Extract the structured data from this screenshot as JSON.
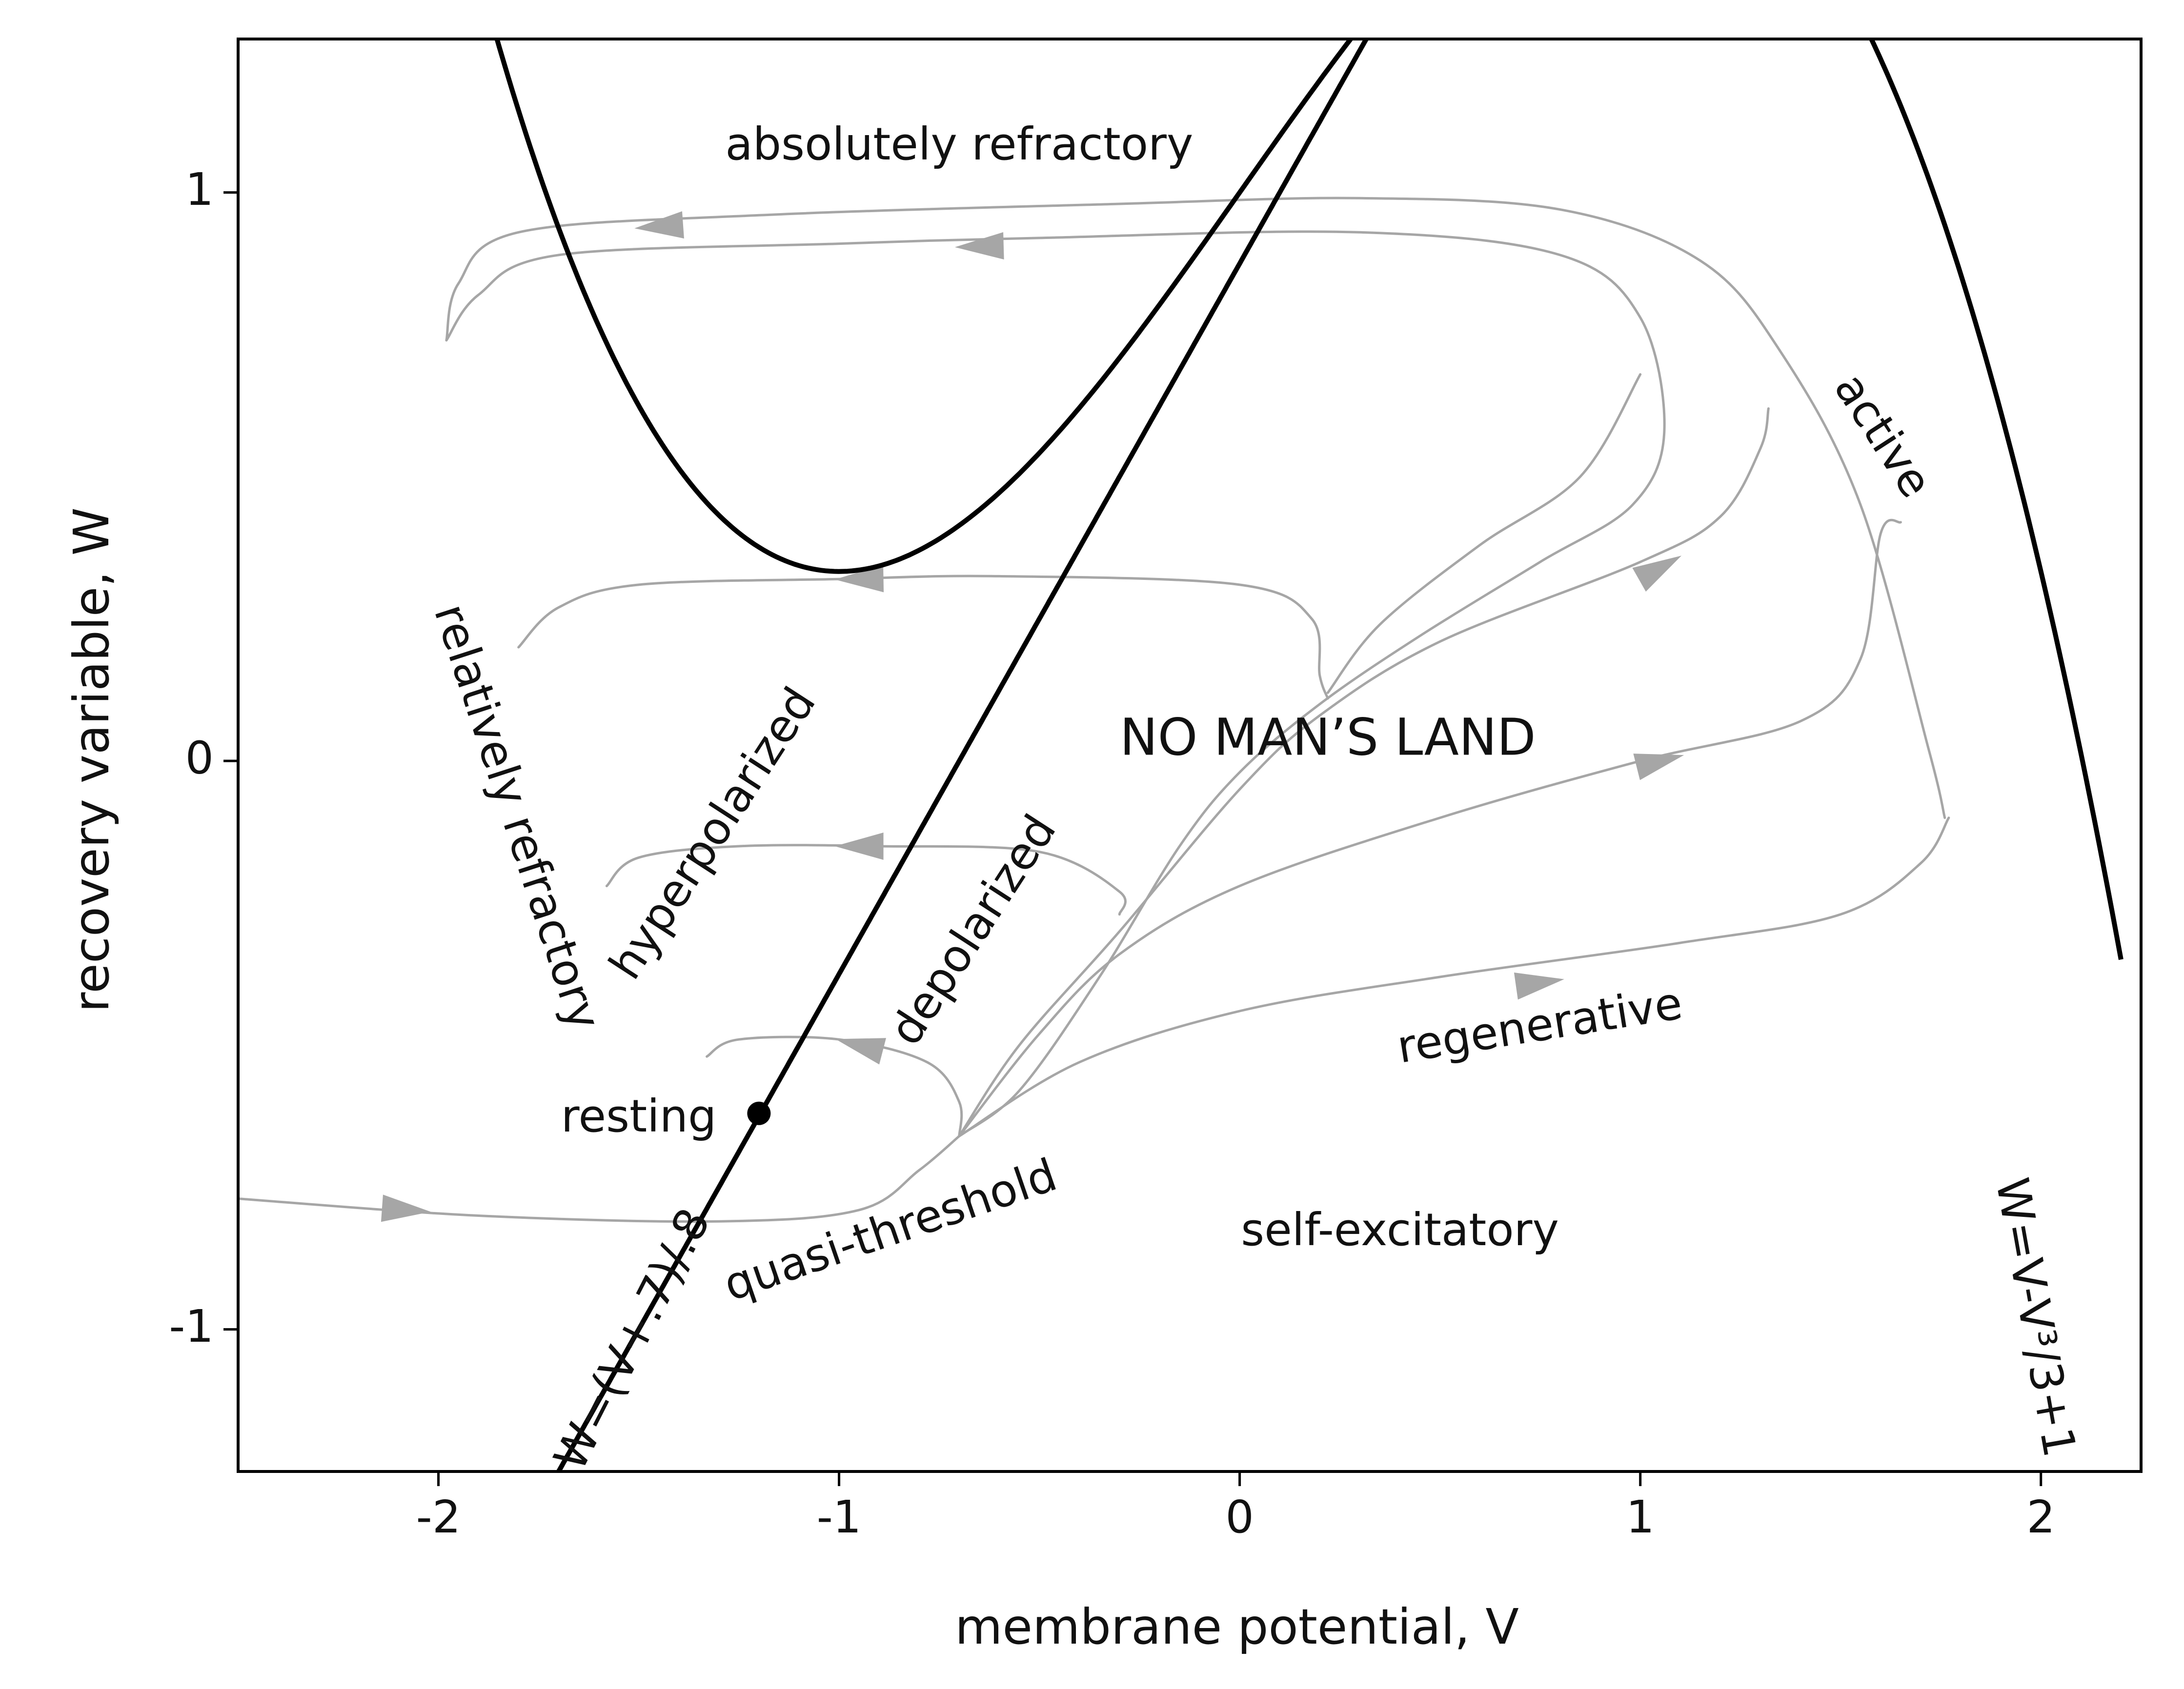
{
  "chart_data": {
    "type": "line",
    "title": "",
    "xlabel": "membrane potential, V",
    "ylabel": "recovery variable, W",
    "xlim": [
      -2.5,
      2.25
    ],
    "ylim": [
      -1.25,
      1.27
    ],
    "xticks": [
      {
        "value": -2,
        "label": "-2"
      },
      {
        "value": -1,
        "label": "-1"
      },
      {
        "value": 0,
        "label": "0"
      },
      {
        "value": 1,
        "label": "1"
      },
      {
        "value": 2,
        "label": "2"
      }
    ],
    "yticks": [
      {
        "value": -1,
        "label": "-1"
      },
      {
        "value": 0,
        "label": "0"
      },
      {
        "value": 1,
        "label": "1"
      }
    ],
    "grid": false,
    "colors": {
      "nullcline": "#000000",
      "trajectory": "#a6a6a6",
      "axes": "#000000"
    },
    "nullclines": [
      {
        "name": "V-nullcline",
        "label": "W=V-V³/3+1",
        "equation": "W = V - V^3/3 + 1",
        "v_range": [
          -2.2,
          2.2
        ]
      },
      {
        "name": "W-nullcline",
        "label": "W=(V+.7)/.8",
        "equation": "W = (V + 0.7) / 0.8",
        "v_range": [
          -1.72,
          0.32
        ]
      }
    ],
    "fixed_point": {
      "v": -1.2,
      "w": -0.62
    },
    "trajectories": [
      {
        "id": "traj-top-outer",
        "points": [
          [
            -1.98,
            0.74
          ],
          [
            -1.95,
            0.84
          ],
          [
            -1.8,
            0.93
          ],
          [
            -1.2,
            0.96
          ],
          [
            -0.3,
            0.98
          ],
          [
            0.3,
            0.99
          ],
          [
            0.8,
            0.97
          ],
          [
            1.15,
            0.88
          ],
          [
            1.35,
            0.72
          ],
          [
            1.55,
            0.45
          ],
          [
            1.72,
            0.02
          ],
          [
            1.76,
            -0.1
          ]
        ],
        "direction": "reverse",
        "arrows": [
          [
            -1.45,
            0.94
          ]
        ]
      },
      {
        "id": "traj-top-inner",
        "points": [
          [
            -1.98,
            0.74
          ],
          [
            -1.9,
            0.82
          ],
          [
            -1.7,
            0.89
          ],
          [
            -1.0,
            0.91
          ],
          [
            -0.5,
            0.92
          ],
          [
            0.3,
            0.93
          ],
          [
            0.8,
            0.89
          ],
          [
            1.0,
            0.78
          ],
          [
            1.06,
            0.58
          ],
          [
            0.98,
            0.45
          ],
          [
            0.75,
            0.35
          ],
          [
            0.45,
            0.22
          ],
          [
            0.2,
            0.1
          ],
          [
            0.0,
            -0.02
          ],
          [
            -0.15,
            -0.15
          ],
          [
            -0.35,
            -0.38
          ],
          [
            -0.55,
            -0.58
          ],
          [
            -0.7,
            -0.66
          ]
        ],
        "direction": "reverse",
        "arrows": [
          [
            -0.65,
            0.905
          ]
        ]
      },
      {
        "id": "traj-hyperpolarized",
        "points": [
          [
            -1.8,
            0.2
          ],
          [
            -1.7,
            0.27
          ],
          [
            -1.5,
            0.31
          ],
          [
            -1.0,
            0.32
          ],
          [
            -0.6,
            0.325
          ],
          [
            0.0,
            0.31
          ],
          [
            0.18,
            0.25
          ],
          [
            0.2,
            0.15
          ],
          [
            0.22,
            0.11
          ]
        ],
        "direction": "reverse",
        "arrows": [
          [
            -0.95,
            0.32
          ]
        ]
      },
      {
        "id": "traj-depolarized-hairpin",
        "points": [
          [
            -1.58,
            -0.22
          ],
          [
            -1.5,
            -0.17
          ],
          [
            -1.25,
            -0.15
          ],
          [
            -0.9,
            -0.15
          ],
          [
            -0.5,
            -0.16
          ],
          [
            -0.3,
            -0.23
          ],
          [
            -0.3,
            -0.27
          ]
        ],
        "direction": "reverse",
        "arrows": [
          [
            -0.95,
            -0.15
          ]
        ]
      },
      {
        "id": "traj-resting",
        "points": [
          [
            -1.33,
            -0.52
          ],
          [
            -1.25,
            -0.49
          ],
          [
            -1.0,
            -0.49
          ],
          [
            -0.78,
            -0.53
          ],
          [
            -0.7,
            -0.6
          ],
          [
            -0.7,
            -0.66
          ]
        ],
        "direction": "reverse",
        "arrows": [
          [
            -0.95,
            -0.5
          ]
        ]
      },
      {
        "id": "traj-entry",
        "points": [
          [
            -2.5,
            -0.77
          ],
          [
            -1.9,
            -0.8
          ],
          [
            -1.3,
            -0.81
          ],
          [
            -0.95,
            -0.79
          ],
          [
            -0.8,
            -0.72
          ],
          [
            -0.7,
            -0.66
          ]
        ],
        "direction": "forward",
        "arrows": [
          [
            -2.08,
            -0.79
          ]
        ]
      },
      {
        "id": "traj-regenerative",
        "points": [
          [
            -0.7,
            -0.66
          ],
          [
            -0.4,
            -0.53
          ],
          [
            0.0,
            -0.44
          ],
          [
            0.5,
            -0.38
          ],
          [
            1.1,
            -0.32
          ],
          [
            1.5,
            -0.27
          ],
          [
            1.7,
            -0.18
          ],
          [
            1.77,
            -0.1
          ]
        ],
        "direction": "forward",
        "arrows": [
          [
            0.75,
            -0.39
          ]
        ]
      },
      {
        "id": "traj-mid",
        "points": [
          [
            -0.7,
            -0.66
          ],
          [
            -0.5,
            -0.48
          ],
          [
            -0.3,
            -0.34
          ],
          [
            0.0,
            -0.22
          ],
          [
            0.5,
            -0.1
          ],
          [
            1.0,
            0.0
          ],
          [
            1.4,
            0.07
          ],
          [
            1.55,
            0.18
          ],
          [
            1.6,
            0.4
          ],
          [
            1.65,
            0.42
          ]
        ],
        "direction": "forward",
        "arrows": [
          [
            1.05,
            0.0
          ]
        ]
      },
      {
        "id": "traj-upper-right",
        "points": [
          [
            -0.7,
            -0.66
          ],
          [
            -0.55,
            -0.5
          ],
          [
            -0.3,
            -0.3
          ],
          [
            0.0,
            -0.05
          ],
          [
            0.2,
            0.08
          ],
          [
            0.5,
            0.21
          ],
          [
            1.0,
            0.35
          ],
          [
            1.2,
            0.43
          ],
          [
            1.3,
            0.55
          ],
          [
            1.32,
            0.62
          ]
        ],
        "direction": "forward",
        "arrows": [
          [
            1.05,
            0.34
          ]
        ]
      },
      {
        "id": "traj-fan-top",
        "points": [
          [
            0.22,
            0.12
          ],
          [
            0.35,
            0.24
          ],
          [
            0.6,
            0.38
          ],
          [
            0.85,
            0.5
          ],
          [
            1.0,
            0.68
          ]
        ],
        "direction": "forward",
        "arrows": []
      }
    ],
    "annotations": [
      {
        "id": "absolutely-refractory",
        "text": "absolutely refractory",
        "v": -0.7,
        "w": 1.08,
        "rotate": 0
      },
      {
        "id": "relatively-refractory",
        "text": "relatively refractory",
        "v": -1.81,
        "w": -0.1,
        "rotate": 72
      },
      {
        "id": "hyperpolarized",
        "text": "hyperpolarized",
        "v": -1.31,
        "w": -0.13,
        "rotate": -57
      },
      {
        "id": "depolarized",
        "text": "depolarized",
        "v": -0.66,
        "w": -0.3,
        "rotate": -57
      },
      {
        "id": "no-mans-land",
        "text": "NO MAN’S LAND",
        "v": 0.22,
        "w": 0.035,
        "rotate": 0
      },
      {
        "id": "active",
        "text": "active",
        "v": 1.6,
        "w": 0.57,
        "rotate": 57
      },
      {
        "id": "resting",
        "text": "resting",
        "v": -1.5,
        "w": -0.63,
        "rotate": 0
      },
      {
        "id": "regenerative",
        "text": "regenerative",
        "v": 0.75,
        "w": -0.47,
        "rotate": -9
      },
      {
        "id": "quasi-threshold",
        "text": "quasi-threshold",
        "v": -0.87,
        "w": -0.83,
        "rotate": -19
      },
      {
        "id": "self-excitatory",
        "text": "self-excitatory",
        "v": 0.4,
        "w": -0.83,
        "rotate": 0
      },
      {
        "id": "w-nullcline-label",
        "text": "W=(V+.7)/.8",
        "v": -1.51,
        "w": -1.02,
        "rotate": -63
      },
      {
        "id": "v-nullcline-label",
        "text": "W=V-V³/3+1",
        "v": 1.98,
        "w": -0.98,
        "rotate": 80
      }
    ]
  }
}
